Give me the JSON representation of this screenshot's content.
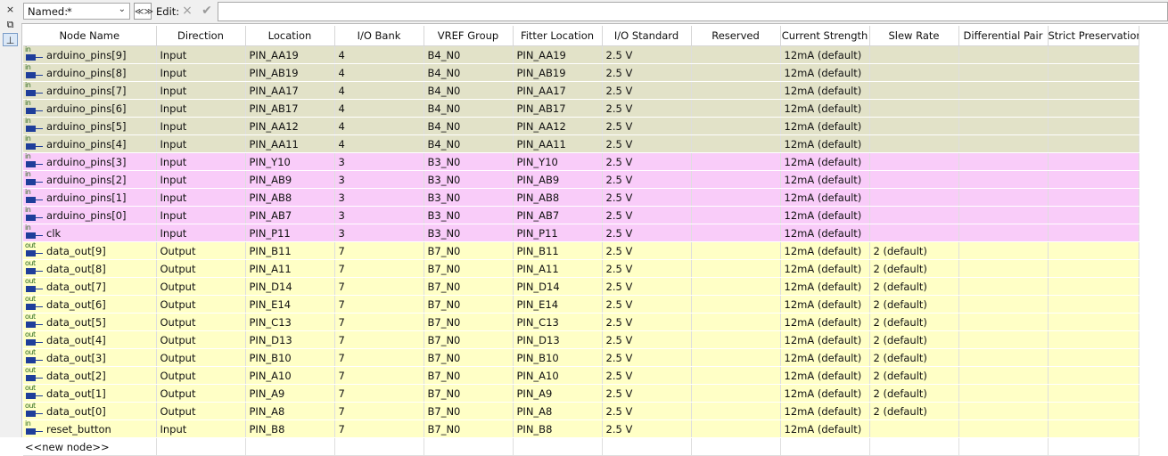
{
  "sidebar": {
    "close_glyph": "×",
    "restore_glyph": "⧉",
    "pin_glyph": "⊥"
  },
  "toolbar": {
    "named_label": "Named:",
    "named_value": "*",
    "filter_glyph": "≪≫",
    "edit_label": "Edit:",
    "cancel_glyph": "×",
    "accept_glyph": "✔"
  },
  "columns": [
    "Node Name",
    "Direction",
    "Location",
    "I/O Bank",
    "VREF Group",
    "Fitter Location",
    "I/O Standard",
    "Reserved",
    "Current Strength",
    "Slew Rate",
    "Differential Pair",
    "Strict Preservation"
  ],
  "rows": [
    {
      "group": "b4",
      "icon": "in",
      "name": "arduino_pins[9]",
      "direction": "Input",
      "location": "PIN_AA19",
      "bank": "4",
      "vref": "B4_N0",
      "fitter": "PIN_AA19",
      "std": "2.5 V",
      "reserved": "",
      "current": "12mA (default)",
      "slew": "",
      "diff": "",
      "strict": ""
    },
    {
      "group": "b4",
      "icon": "in",
      "name": "arduino_pins[8]",
      "direction": "Input",
      "location": "PIN_AB19",
      "bank": "4",
      "vref": "B4_N0",
      "fitter": "PIN_AB19",
      "std": "2.5 V",
      "reserved": "",
      "current": "12mA (default)",
      "slew": "",
      "diff": "",
      "strict": ""
    },
    {
      "group": "b4",
      "icon": "in",
      "name": "arduino_pins[7]",
      "direction": "Input",
      "location": "PIN_AA17",
      "bank": "4",
      "vref": "B4_N0",
      "fitter": "PIN_AA17",
      "std": "2.5 V",
      "reserved": "",
      "current": "12mA (default)",
      "slew": "",
      "diff": "",
      "strict": ""
    },
    {
      "group": "b4",
      "icon": "in",
      "name": "arduino_pins[6]",
      "direction": "Input",
      "location": "PIN_AB17",
      "bank": "4",
      "vref": "B4_N0",
      "fitter": "PIN_AB17",
      "std": "2.5 V",
      "reserved": "",
      "current": "12mA (default)",
      "slew": "",
      "diff": "",
      "strict": ""
    },
    {
      "group": "b4",
      "icon": "in",
      "name": "arduino_pins[5]",
      "direction": "Input",
      "location": "PIN_AA12",
      "bank": "4",
      "vref": "B4_N0",
      "fitter": "PIN_AA12",
      "std": "2.5 V",
      "reserved": "",
      "current": "12mA (default)",
      "slew": "",
      "diff": "",
      "strict": ""
    },
    {
      "group": "b4",
      "icon": "in",
      "name": "arduino_pins[4]",
      "direction": "Input",
      "location": "PIN_AA11",
      "bank": "4",
      "vref": "B4_N0",
      "fitter": "PIN_AA11",
      "std": "2.5 V",
      "reserved": "",
      "current": "12mA (default)",
      "slew": "",
      "diff": "",
      "strict": ""
    },
    {
      "group": "b3",
      "icon": "in",
      "name": "arduino_pins[3]",
      "direction": "Input",
      "location": "PIN_Y10",
      "bank": "3",
      "vref": "B3_N0",
      "fitter": "PIN_Y10",
      "std": "2.5 V",
      "reserved": "",
      "current": "12mA (default)",
      "slew": "",
      "diff": "",
      "strict": ""
    },
    {
      "group": "b3",
      "icon": "in",
      "name": "arduino_pins[2]",
      "direction": "Input",
      "location": "PIN_AB9",
      "bank": "3",
      "vref": "B3_N0",
      "fitter": "PIN_AB9",
      "std": "2.5 V",
      "reserved": "",
      "current": "12mA (default)",
      "slew": "",
      "diff": "",
      "strict": ""
    },
    {
      "group": "b3",
      "icon": "in",
      "name": "arduino_pins[1]",
      "direction": "Input",
      "location": "PIN_AB8",
      "bank": "3",
      "vref": "B3_N0",
      "fitter": "PIN_AB8",
      "std": "2.5 V",
      "reserved": "",
      "current": "12mA (default)",
      "slew": "",
      "diff": "",
      "strict": ""
    },
    {
      "group": "b3",
      "icon": "in",
      "name": "arduino_pins[0]",
      "direction": "Input",
      "location": "PIN_AB7",
      "bank": "3",
      "vref": "B3_N0",
      "fitter": "PIN_AB7",
      "std": "2.5 V",
      "reserved": "",
      "current": "12mA (default)",
      "slew": "",
      "diff": "",
      "strict": ""
    },
    {
      "group": "b3",
      "icon": "in",
      "name": "clk",
      "direction": "Input",
      "location": "PIN_P11",
      "bank": "3",
      "vref": "B3_N0",
      "fitter": "PIN_P11",
      "std": "2.5 V",
      "reserved": "",
      "current": "12mA (default)",
      "slew": "",
      "diff": "",
      "strict": ""
    },
    {
      "group": "b7",
      "icon": "out",
      "name": "data_out[9]",
      "direction": "Output",
      "location": "PIN_B11",
      "bank": "7",
      "vref": "B7_N0",
      "fitter": "PIN_B11",
      "std": "2.5 V",
      "reserved": "",
      "current": "12mA (default)",
      "slew": "2 (default)",
      "diff": "",
      "strict": ""
    },
    {
      "group": "b7",
      "icon": "out",
      "name": "data_out[8]",
      "direction": "Output",
      "location": "PIN_A11",
      "bank": "7",
      "vref": "B7_N0",
      "fitter": "PIN_A11",
      "std": "2.5 V",
      "reserved": "",
      "current": "12mA (default)",
      "slew": "2 (default)",
      "diff": "",
      "strict": ""
    },
    {
      "group": "b7",
      "icon": "out",
      "name": "data_out[7]",
      "direction": "Output",
      "location": "PIN_D14",
      "bank": "7",
      "vref": "B7_N0",
      "fitter": "PIN_D14",
      "std": "2.5 V",
      "reserved": "",
      "current": "12mA (default)",
      "slew": "2 (default)",
      "diff": "",
      "strict": ""
    },
    {
      "group": "b7",
      "icon": "out",
      "name": "data_out[6]",
      "direction": "Output",
      "location": "PIN_E14",
      "bank": "7",
      "vref": "B7_N0",
      "fitter": "PIN_E14",
      "std": "2.5 V",
      "reserved": "",
      "current": "12mA (default)",
      "slew": "2 (default)",
      "diff": "",
      "strict": ""
    },
    {
      "group": "b7",
      "icon": "out",
      "name": "data_out[5]",
      "direction": "Output",
      "location": "PIN_C13",
      "bank": "7",
      "vref": "B7_N0",
      "fitter": "PIN_C13",
      "std": "2.5 V",
      "reserved": "",
      "current": "12mA (default)",
      "slew": "2 (default)",
      "diff": "",
      "strict": ""
    },
    {
      "group": "b7",
      "icon": "out",
      "name": "data_out[4]",
      "direction": "Output",
      "location": "PIN_D13",
      "bank": "7",
      "vref": "B7_N0",
      "fitter": "PIN_D13",
      "std": "2.5 V",
      "reserved": "",
      "current": "12mA (default)",
      "slew": "2 (default)",
      "diff": "",
      "strict": ""
    },
    {
      "group": "b7",
      "icon": "out",
      "name": "data_out[3]",
      "direction": "Output",
      "location": "PIN_B10",
      "bank": "7",
      "vref": "B7_N0",
      "fitter": "PIN_B10",
      "std": "2.5 V",
      "reserved": "",
      "current": "12mA (default)",
      "slew": "2 (default)",
      "diff": "",
      "strict": ""
    },
    {
      "group": "b7",
      "icon": "out",
      "name": "data_out[2]",
      "direction": "Output",
      "location": "PIN_A10",
      "bank": "7",
      "vref": "B7_N0",
      "fitter": "PIN_A10",
      "std": "2.5 V",
      "reserved": "",
      "current": "12mA (default)",
      "slew": "2 (default)",
      "diff": "",
      "strict": ""
    },
    {
      "group": "b7",
      "icon": "out",
      "name": "data_out[1]",
      "direction": "Output",
      "location": "PIN_A9",
      "bank": "7",
      "vref": "B7_N0",
      "fitter": "PIN_A9",
      "std": "2.5 V",
      "reserved": "",
      "current": "12mA (default)",
      "slew": "2 (default)",
      "diff": "",
      "strict": ""
    },
    {
      "group": "b7",
      "icon": "out",
      "name": "data_out[0]",
      "direction": "Output",
      "location": "PIN_A8",
      "bank": "7",
      "vref": "B7_N0",
      "fitter": "PIN_A8",
      "std": "2.5 V",
      "reserved": "",
      "current": "12mA (default)",
      "slew": "2 (default)",
      "diff": "",
      "strict": ""
    },
    {
      "group": "b7",
      "icon": "in",
      "name": "reset_button",
      "direction": "Input",
      "location": "PIN_B8",
      "bank": "7",
      "vref": "B7_N0",
      "fitter": "PIN_B8",
      "std": "2.5 V",
      "reserved": "",
      "current": "12mA (default)",
      "slew": "",
      "diff": "",
      "strict": ""
    }
  ],
  "new_node_label": "<<new node>>",
  "colors": {
    "bank4_row": "#e2e2c8",
    "bank3_row": "#f9ccf9",
    "bank7_row": "#ffffc6",
    "pin_icon": "#1f3e9a",
    "pin_dir_text": "#2d6a1e"
  }
}
